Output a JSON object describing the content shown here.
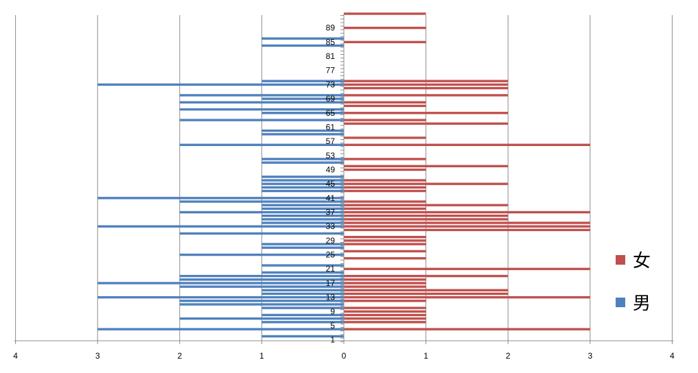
{
  "chart_data": {
    "type": "bar",
    "orientation": "horizontal",
    "title": "",
    "xlabel": "",
    "ylabel": "",
    "xlim": [
      -4,
      4
    ],
    "ylim": [
      1,
      93
    ],
    "x_ticks": [
      -4,
      -3,
      -2,
      -1,
      0,
      1,
      2,
      3,
      4
    ],
    "x_tick_labels": [
      "4",
      "3",
      "2",
      "1",
      "0",
      "1",
      "2",
      "3",
      "4"
    ],
    "y_tick_labels": [
      "1",
      "5",
      "9",
      "13",
      "17",
      "21",
      "25",
      "29",
      "33",
      "37",
      "41",
      "45",
      "49",
      "53",
      "57",
      "61",
      "65",
      "69",
      "73",
      "77",
      "81",
      "85",
      "89"
    ],
    "y_tick_values": [
      1,
      5,
      9,
      13,
      17,
      21,
      25,
      29,
      33,
      37,
      41,
      45,
      49,
      53,
      57,
      61,
      65,
      69,
      73,
      77,
      81,
      85,
      89
    ],
    "grid": true,
    "legend_position": "right",
    "series": [
      {
        "name": "女",
        "color": "#C0504D",
        "points": [
          [
            4,
            3
          ],
          [
            6,
            1
          ],
          [
            7,
            1
          ],
          [
            8,
            1
          ],
          [
            9,
            1
          ],
          [
            10,
            1
          ],
          [
            12,
            1
          ],
          [
            13,
            3
          ],
          [
            14,
            2
          ],
          [
            15,
            2
          ],
          [
            16,
            1
          ],
          [
            17,
            1
          ],
          [
            18,
            1
          ],
          [
            19,
            2
          ],
          [
            21,
            3
          ],
          [
            24,
            1
          ],
          [
            26,
            1
          ],
          [
            28,
            1
          ],
          [
            29,
            1
          ],
          [
            30,
            1
          ],
          [
            32,
            3
          ],
          [
            33,
            3
          ],
          [
            34,
            3
          ],
          [
            35,
            2
          ],
          [
            36,
            2
          ],
          [
            37,
            3
          ],
          [
            38,
            1
          ],
          [
            39,
            2
          ],
          [
            40,
            1
          ],
          [
            43,
            1
          ],
          [
            44,
            1
          ],
          [
            45,
            2
          ],
          [
            46,
            1
          ],
          [
            49,
            1
          ],
          [
            50,
            2
          ],
          [
            52,
            1
          ],
          [
            56,
            3
          ],
          [
            58,
            1
          ],
          [
            62,
            2
          ],
          [
            63,
            1
          ],
          [
            65,
            2
          ],
          [
            67,
            1
          ],
          [
            68,
            1
          ],
          [
            70,
            2
          ],
          [
            72,
            2
          ],
          [
            73,
            2
          ],
          [
            74,
            2
          ],
          [
            85,
            1
          ],
          [
            89,
            1
          ],
          [
            93,
            1
          ]
        ]
      },
      {
        "name": "男",
        "color": "#4F81BD",
        "points": [
          [
            2,
            1
          ],
          [
            4,
            3
          ],
          [
            6,
            1
          ],
          [
            7,
            2
          ],
          [
            8,
            1
          ],
          [
            10,
            1
          ],
          [
            11,
            2
          ],
          [
            12,
            2
          ],
          [
            13,
            3
          ],
          [
            14,
            1
          ],
          [
            15,
            1
          ],
          [
            16,
            2
          ],
          [
            17,
            3
          ],
          [
            18,
            2
          ],
          [
            19,
            2
          ],
          [
            20,
            1
          ],
          [
            22,
            1
          ],
          [
            25,
            2
          ],
          [
            27,
            1
          ],
          [
            28,
            1
          ],
          [
            31,
            2
          ],
          [
            33,
            3
          ],
          [
            34,
            1
          ],
          [
            35,
            1
          ],
          [
            36,
            1
          ],
          [
            37,
            2
          ],
          [
            38,
            1
          ],
          [
            39,
            1
          ],
          [
            40,
            2
          ],
          [
            41,
            3
          ],
          [
            43,
            1
          ],
          [
            44,
            1
          ],
          [
            45,
            1
          ],
          [
            46,
            1
          ],
          [
            47,
            1
          ],
          [
            51,
            1
          ],
          [
            52,
            1
          ],
          [
            56,
            2
          ],
          [
            59,
            1
          ],
          [
            60,
            1
          ],
          [
            63,
            2
          ],
          [
            65,
            1
          ],
          [
            66,
            2
          ],
          [
            68,
            2
          ],
          [
            69,
            1
          ],
          [
            70,
            2
          ],
          [
            73,
            3
          ],
          [
            74,
            1
          ],
          [
            84,
            1
          ],
          [
            86,
            1
          ]
        ]
      }
    ]
  }
}
